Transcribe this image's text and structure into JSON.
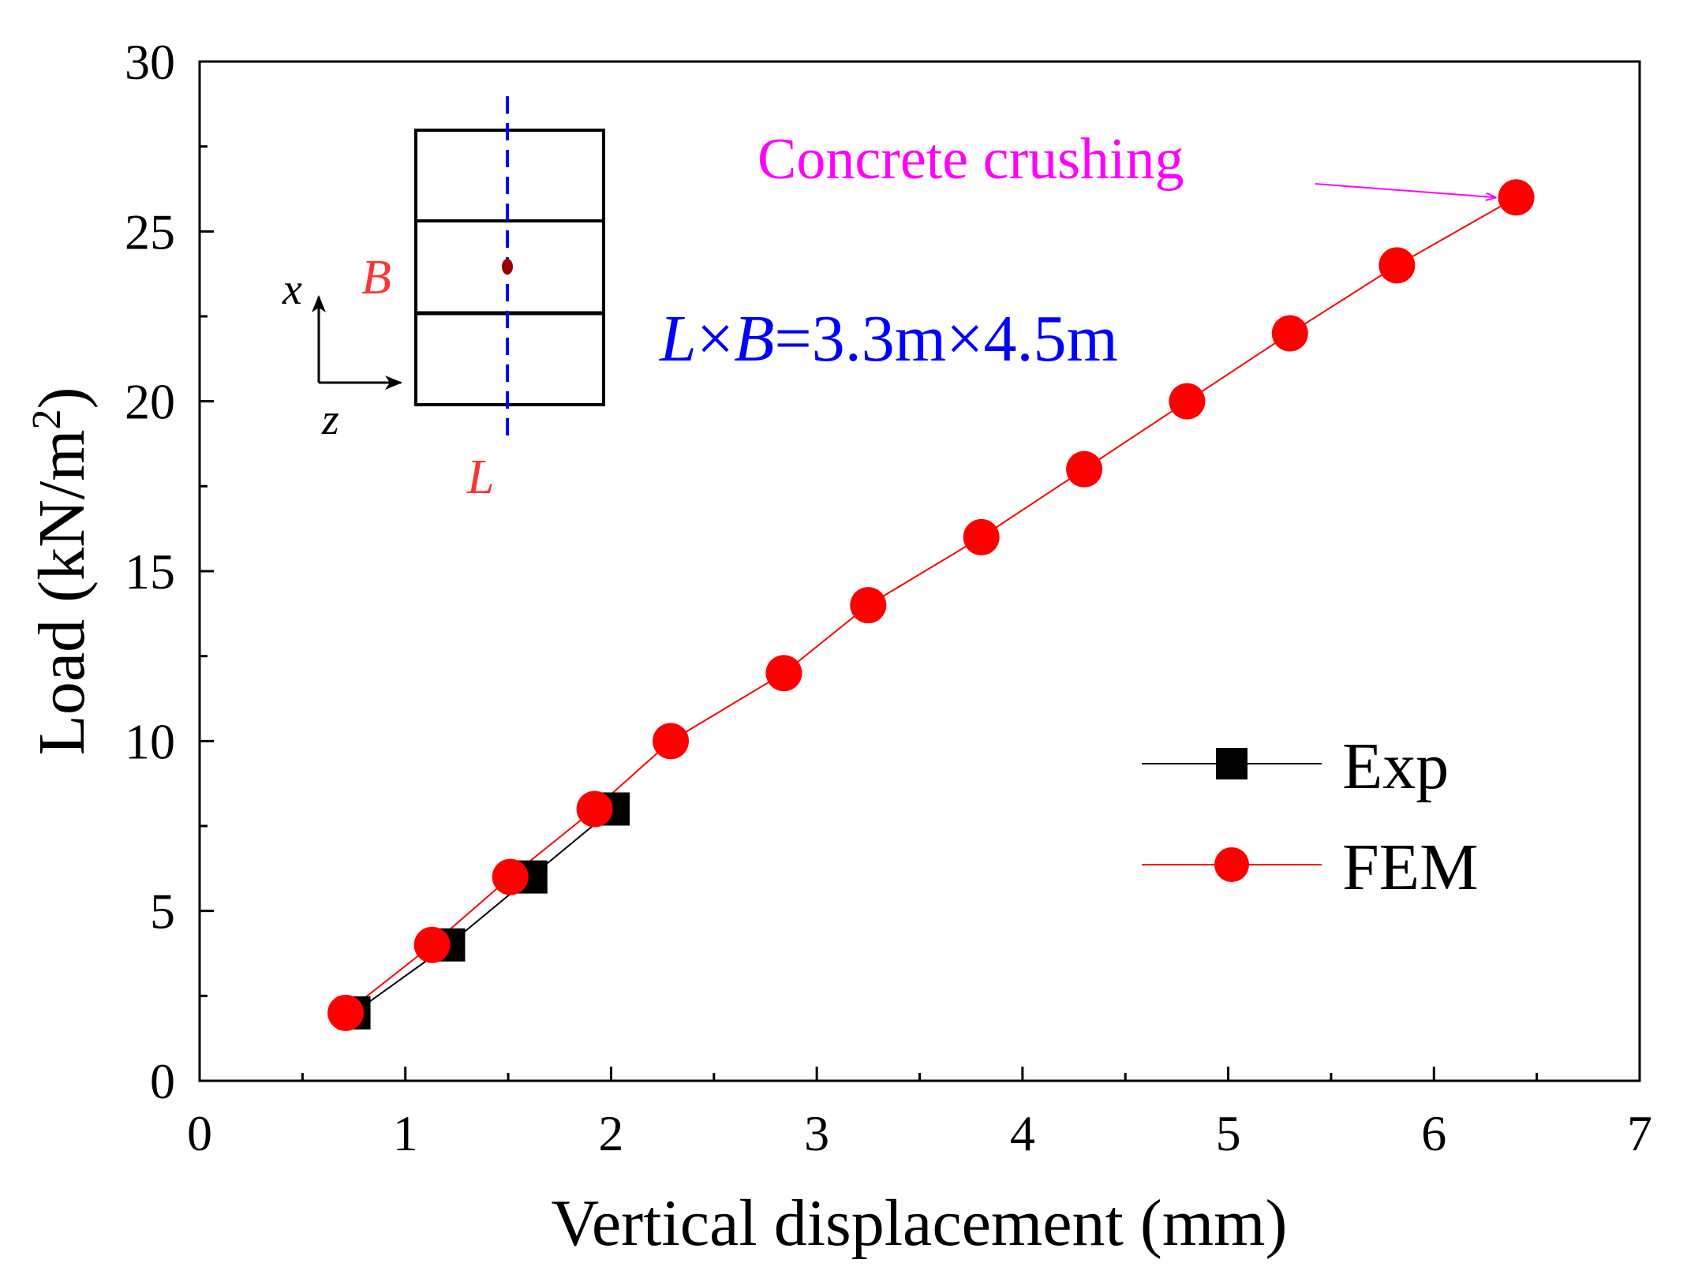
{
  "chart_data": {
    "type": "line",
    "xlabel": "Vertical displacement (mm)",
    "ylabel_main": "Load (kN/m",
    "ylabel_sup": "2",
    "ylabel_close": ")",
    "xlim": [
      0,
      7
    ],
    "ylim": [
      0,
      30
    ],
    "xticks": [
      0,
      1,
      2,
      3,
      4,
      5,
      6,
      7
    ],
    "yticks": [
      0,
      5,
      10,
      15,
      20,
      25,
      30
    ],
    "legend_position": "lower-right",
    "series": [
      {
        "name": "Exp",
        "color": "#000000",
        "marker": "square",
        "x": [
          0.75,
          1.21,
          1.61,
          2.01
        ],
        "y": [
          2,
          4,
          6,
          8
        ]
      },
      {
        "name": "FEM",
        "color": "#ff0000",
        "marker": "circle",
        "x": [
          0.71,
          1.13,
          1.51,
          1.92,
          2.29,
          2.84,
          3.25,
          3.8,
          4.3,
          4.8,
          5.3,
          5.82,
          6.4
        ],
        "y": [
          2,
          4,
          6,
          8,
          10,
          12,
          14,
          16,
          18,
          20,
          22,
          24,
          26
        ]
      }
    ],
    "annotation": {
      "text": "Concrete crushing",
      "color": "#ff00ff",
      "target": [
        6.4,
        26
      ]
    },
    "inset": {
      "dimension_L": "L",
      "times1": "×",
      "dimension_B": "B",
      "value": "=3.3m×4.5m",
      "label_B": "B",
      "label_L": "L",
      "axis_x": "x",
      "axis_z": "z",
      "text_color": "#0000ff",
      "label_color": "#ff3333"
    }
  }
}
